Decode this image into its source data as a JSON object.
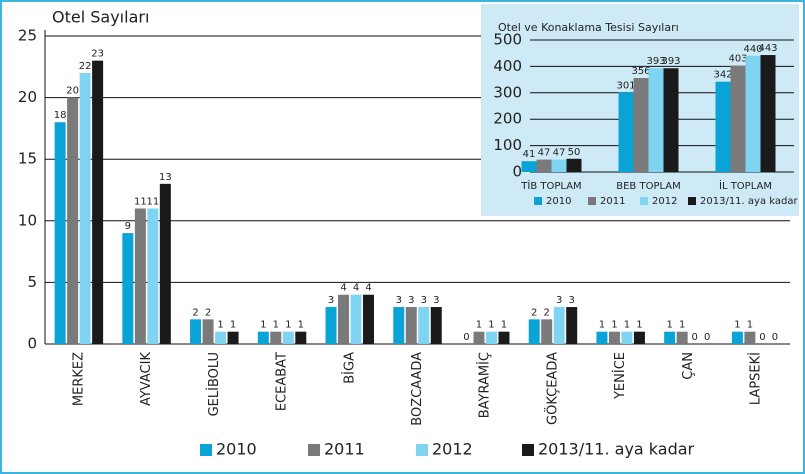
{
  "chart_data": [
    {
      "type": "bar",
      "title": "Otel Sayıları",
      "categories": [
        "MERKEZ",
        "AYVACIK",
        "GELİBOLU",
        "ECEABAT",
        "BİGA",
        "BOZCAADA",
        "BAYRAMİÇ",
        "GÖKÇEADA",
        "YENİCE",
        "ÇAN",
        "LAPSEKİ"
      ],
      "series": [
        {
          "name": "2010",
          "color": "#0aa3d6",
          "values": [
            18,
            9,
            2,
            1,
            3,
            3,
            0,
            2,
            1,
            1,
            1
          ]
        },
        {
          "name": "2011",
          "color": "#7a7a7a",
          "values": [
            20,
            11,
            2,
            1,
            4,
            3,
            1,
            2,
            1,
            1,
            1
          ]
        },
        {
          "name": "2012",
          "color": "#7fd4f2",
          "values": [
            22,
            11,
            1,
            1,
            4,
            3,
            1,
            3,
            1,
            0,
            0
          ]
        },
        {
          "name": "2013/11. aya kadar",
          "color": "#1a1a1a",
          "values": [
            23,
            13,
            1,
            1,
            4,
            3,
            1,
            3,
            1,
            0,
            0
          ]
        }
      ],
      "ylim": [
        0,
        25
      ],
      "yticks": [
        0,
        5,
        10,
        15,
        20,
        25
      ],
      "grid": true
    },
    {
      "type": "bar",
      "title": "Otel ve Konaklama Tesisi Sayıları",
      "categories": [
        "TİB TOPLAM",
        "BEB TOPLAM",
        "İL TOPLAM"
      ],
      "series": [
        {
          "name": "2010",
          "color": "#0aa3d6",
          "values": [
            41,
            301,
            342
          ]
        },
        {
          "name": "2011",
          "color": "#7a7a7a",
          "values": [
            47,
            356,
            403
          ]
        },
        {
          "name": "2012",
          "color": "#7fd4f2",
          "values": [
            47,
            393,
            440
          ]
        },
        {
          "name": "2013/11. aya kadar",
          "color": "#1a1a1a",
          "values": [
            50,
            393,
            443
          ]
        }
      ],
      "ylim": [
        0,
        500
      ],
      "yticks": [
        0,
        100,
        200,
        300,
        400,
        500
      ],
      "grid": true
    }
  ]
}
